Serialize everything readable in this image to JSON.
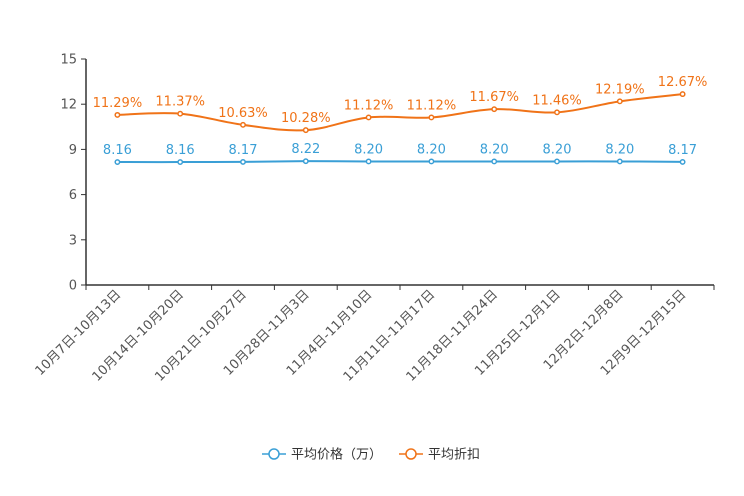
{
  "chart_data": {
    "type": "line",
    "title": "",
    "xlabel": "",
    "ylabel": "",
    "ylim": [
      0,
      15
    ],
    "yticks": [
      0,
      3,
      6,
      9,
      12,
      15
    ],
    "grid": false,
    "legend_position": "bottom-center",
    "categories": [
      "10月7日-10月13日",
      "10月14日-10月20日",
      "10月21日-10月27日",
      "10月28日-11月3日",
      "11月4日-11月10日",
      "11月11日-11月17日",
      "11月18日-11月24日",
      "11月25日-12月1日",
      "12月2日-12月8日",
      "12月9日-12月15日"
    ],
    "series": [
      {
        "name": "平均价格（万）",
        "color": "#3a9fd6",
        "values": [
          8.16,
          8.16,
          8.17,
          8.22,
          8.2,
          8.2,
          8.2,
          8.2,
          8.2,
          8.17
        ],
        "labels": [
          "8.16",
          "8.16",
          "8.17",
          "8.22",
          "8.20",
          "8.20",
          "8.20",
          "8.20",
          "8.20",
          "8.17"
        ]
      },
      {
        "name": "平均折扣",
        "color": "#f07318",
        "values": [
          11.29,
          11.37,
          10.63,
          10.28,
          11.12,
          11.12,
          11.67,
          11.46,
          12.19,
          12.67
        ],
        "labels": [
          "11.29%",
          "11.37%",
          "10.63%",
          "10.28%",
          "11.12%",
          "11.12%",
          "11.67%",
          "11.46%",
          "12.19%",
          "12.67%"
        ]
      }
    ]
  }
}
